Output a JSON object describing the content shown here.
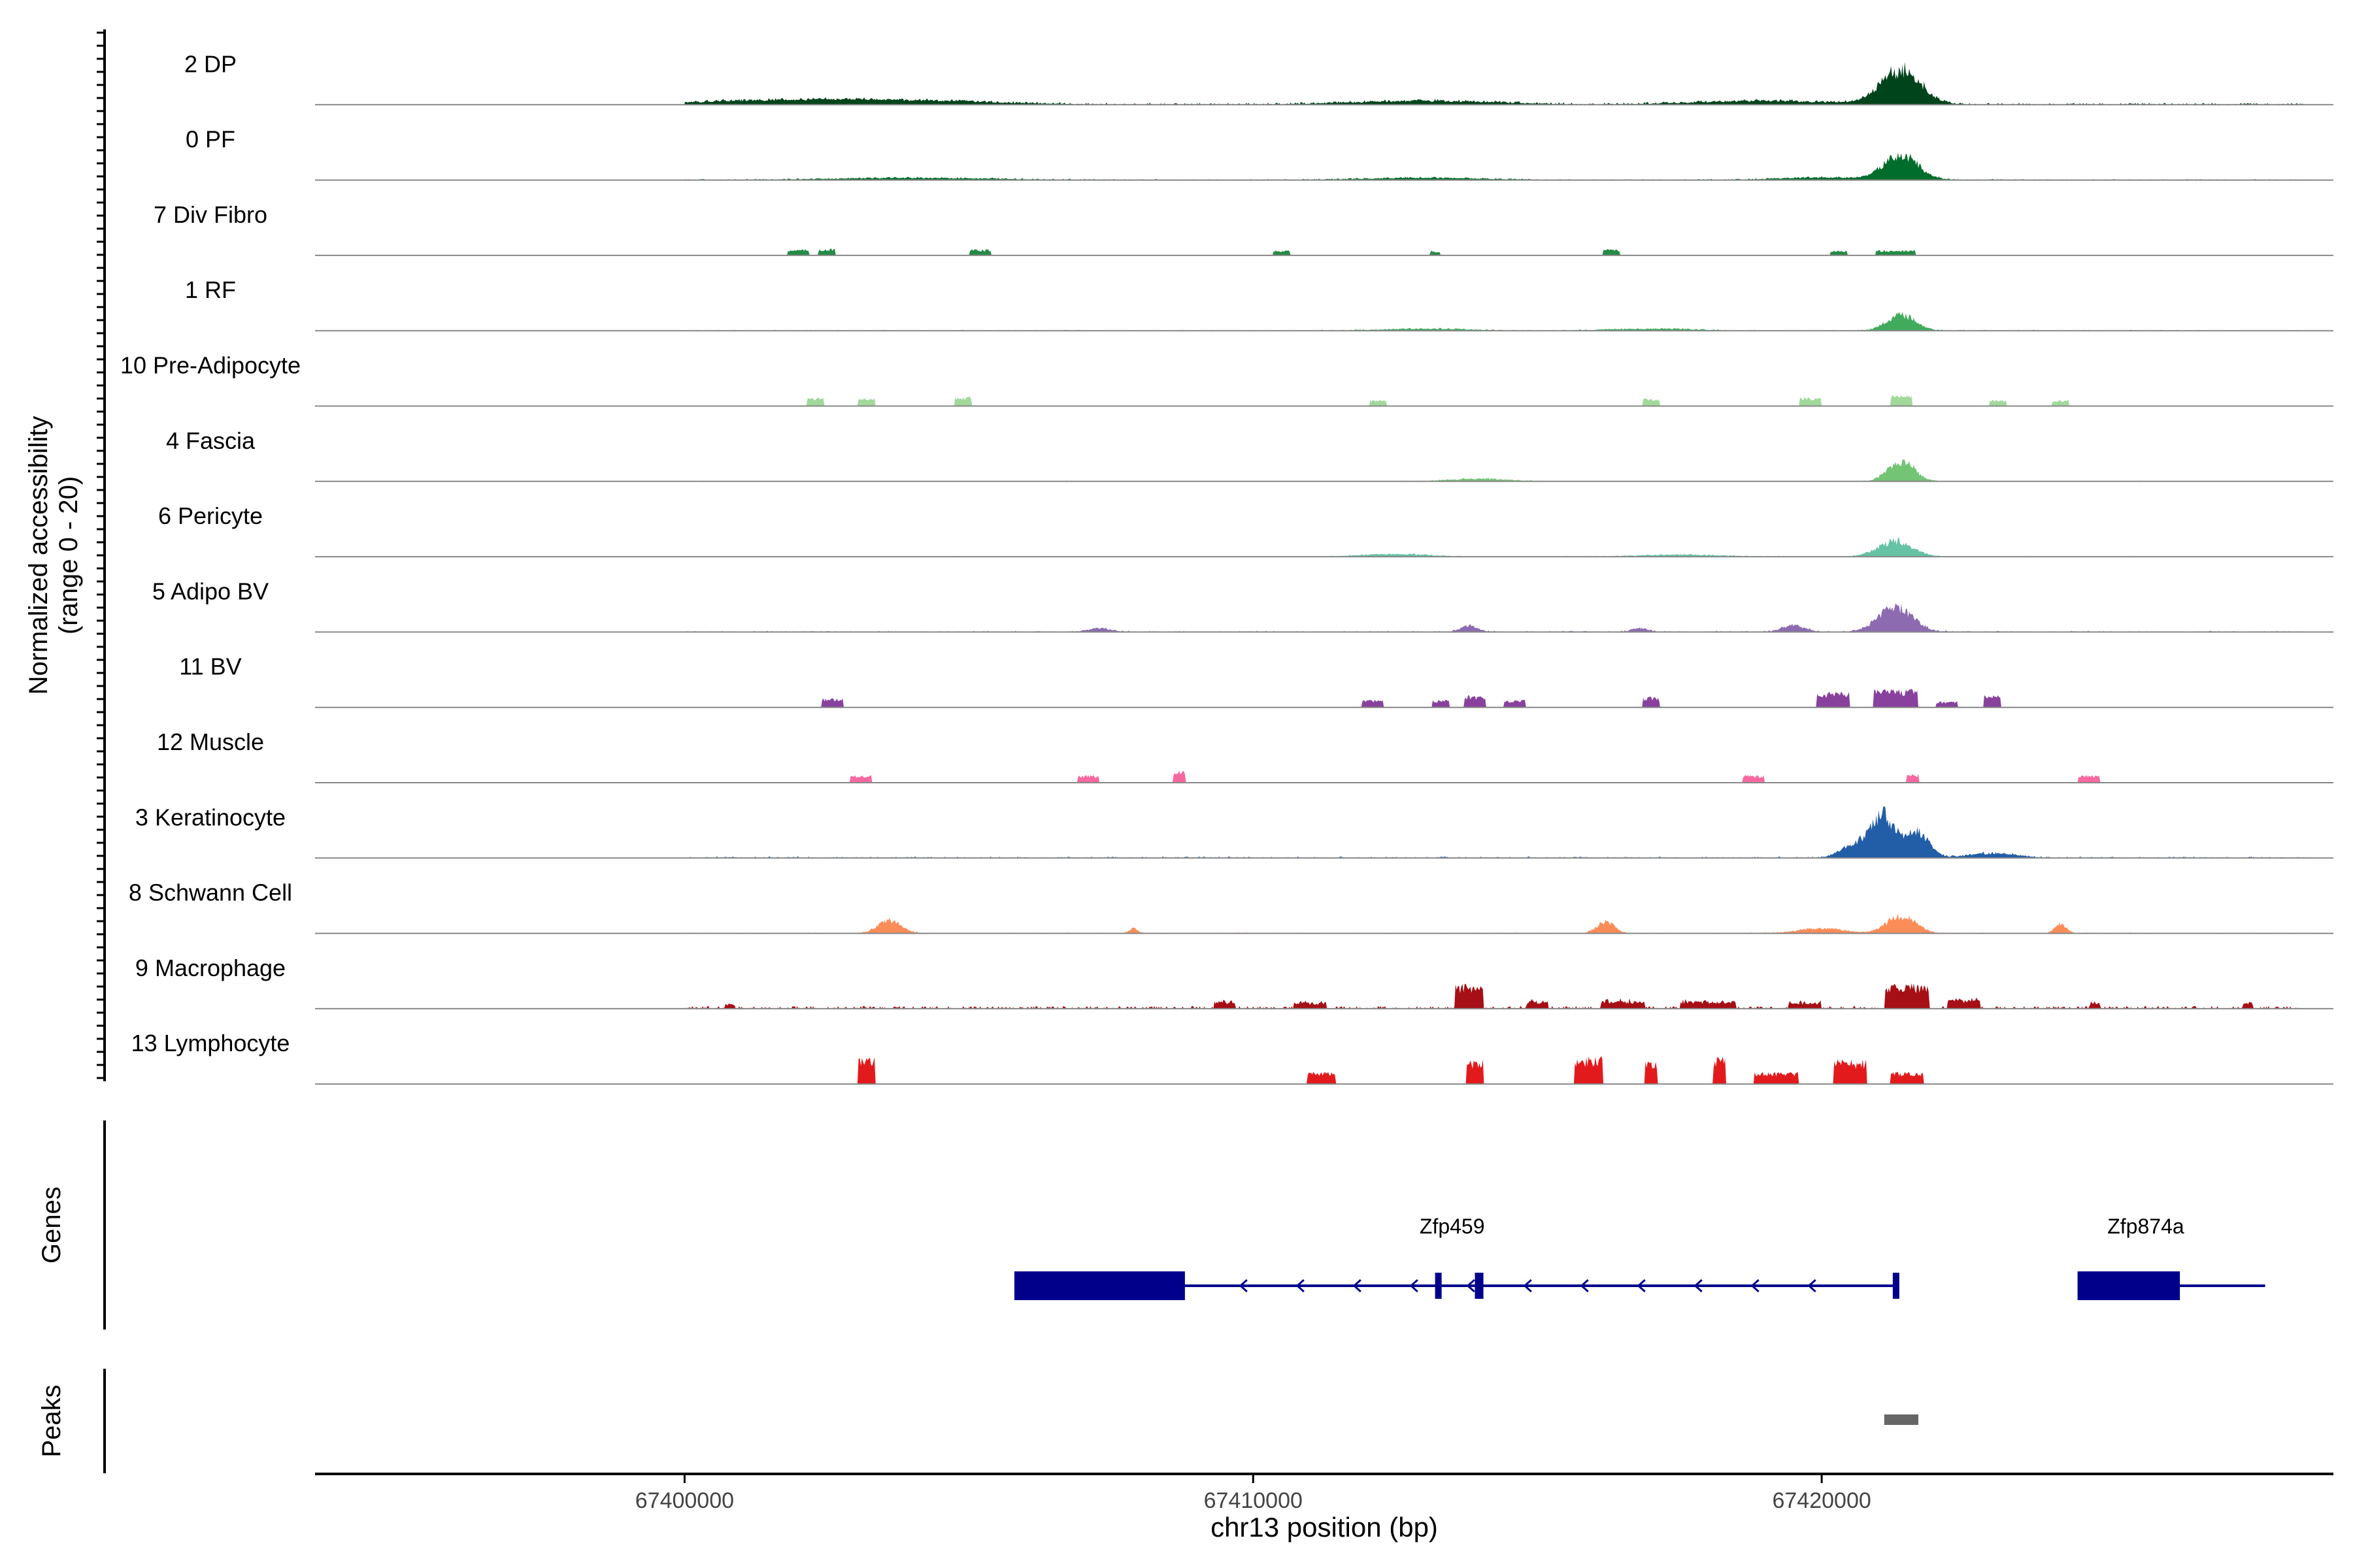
{
  "chart_data": {
    "type": "area",
    "title": "",
    "ylabel_line1": "Normalized accessibility",
    "ylabel_line2": "(range 0 - 20)",
    "xlabel": "chr13 position (bp)",
    "xlim": [
      67393500,
      67429000
    ],
    "ylim": [
      0,
      20
    ],
    "x_ticks": [
      67400000,
      67410000,
      67420000
    ],
    "x_tick_labels": [
      "67400000",
      "67410000",
      "67420000"
    ],
    "genes_label": "Genes",
    "peaks_label": "Peaks",
    "series": [
      {
        "name": "2 DP",
        "color": "#00441b",
        "peaks": [
          [
            67421400,
            11,
            700
          ],
          [
            67413000,
            1.2,
            2500
          ],
          [
            67404000,
            1.2,
            3000
          ],
          [
            67419000,
            1.2,
            2500
          ],
          [
            67401500,
            1.2,
            3000
          ]
        ],
        "noise": 0.6
      },
      {
        "name": "0 PF",
        "color": "#006d2c",
        "peaks": [
          [
            67421400,
            8,
            600
          ],
          [
            67420000,
            0.8,
            1500
          ],
          [
            67413000,
            0.7,
            2000
          ],
          [
            67404000,
            0.6,
            3000
          ]
        ],
        "noise": 0.35
      },
      {
        "name": "7 Div Fibro",
        "color": "#238b45",
        "peaks": [
          [
            67402000,
            2,
            200
          ],
          [
            67402500,
            2.2,
            150
          ],
          [
            67405200,
            2,
            200
          ],
          [
            67410500,
            1.8,
            150
          ],
          [
            67413200,
            1.5,
            100
          ],
          [
            67416300,
            2.2,
            150
          ],
          [
            67420300,
            1.5,
            150
          ],
          [
            67421300,
            1.8,
            350
          ]
        ],
        "noise": 0,
        "discrete": true
      },
      {
        "name": "1 RF",
        "color": "#41ab5d",
        "peaks": [
          [
            67421400,
            5,
            500
          ],
          [
            67413000,
            0.6,
            1500
          ],
          [
            67417000,
            0.6,
            1500
          ]
        ],
        "noise": 0.3
      },
      {
        "name": "10 Pre-Adipocyte",
        "color": "#a1d99b",
        "peaks": [
          [
            67402300,
            3,
            150
          ],
          [
            67403200,
            3,
            150
          ],
          [
            67404900,
            3,
            150
          ],
          [
            67412200,
            2,
            150
          ],
          [
            67417000,
            2.5,
            150
          ],
          [
            67419800,
            3,
            200
          ],
          [
            67421400,
            4,
            200
          ],
          [
            67423100,
            2,
            150
          ],
          [
            67424200,
            2,
            150
          ]
        ],
        "noise": 0,
        "discrete": true
      },
      {
        "name": "4 Fascia",
        "color": "#74c476",
        "peaks": [
          [
            67421400,
            6.5,
            450
          ],
          [
            67414000,
            0.8,
            1000
          ]
        ],
        "noise": 0.25
      },
      {
        "name": "6 Pericyte",
        "color": "#66c2a4",
        "peaks": [
          [
            67421300,
            5,
            600
          ],
          [
            67412500,
            0.8,
            1200
          ],
          [
            67417500,
            0.6,
            1500
          ]
        ],
        "noise": 0.25
      },
      {
        "name": "5 Adipo BV",
        "color": "#8c6bb1",
        "peaks": [
          [
            67421300,
            8,
            600
          ],
          [
            67413800,
            2,
            300
          ],
          [
            67419500,
            2,
            400
          ],
          [
            67407300,
            1.2,
            400
          ],
          [
            67416800,
            1.2,
            300
          ]
        ],
        "noise": 0.4
      },
      {
        "name": "11 BV",
        "color": "#88419d",
        "peaks": [
          [
            67402600,
            3,
            200
          ],
          [
            67412100,
            2.5,
            200
          ],
          [
            67413300,
            2.5,
            150
          ],
          [
            67413900,
            4,
            200
          ],
          [
            67414600,
            2.5,
            200
          ],
          [
            67417000,
            3.5,
            150
          ],
          [
            67420200,
            5,
            300
          ],
          [
            67421300,
            6,
            400
          ],
          [
            67422200,
            2,
            200
          ],
          [
            67423000,
            4,
            150
          ]
        ],
        "noise": 0,
        "discrete": true
      },
      {
        "name": "12 Muscle",
        "color": "#f768a1",
        "peaks": [
          [
            67403100,
            2.5,
            200
          ],
          [
            67407100,
            2.5,
            200
          ],
          [
            67408700,
            4,
            120
          ],
          [
            67418800,
            2.5,
            200
          ],
          [
            67421600,
            3,
            120
          ],
          [
            67424700,
            2.5,
            200
          ]
        ],
        "noise": 0,
        "discrete": true
      },
      {
        "name": "3 Keratinocyte",
        "color": "#225ea8",
        "peaks": [
          [
            67421100,
            13,
            450
          ],
          [
            67421700,
            8,
            400
          ],
          [
            67420600,
            4,
            500
          ],
          [
            67423000,
            1.5,
            800
          ]
        ],
        "noise": 0.5
      },
      {
        "name": "8 Schwann Cell",
        "color": "#fc8d59",
        "peaks": [
          [
            67403600,
            4,
            400
          ],
          [
            67416200,
            4,
            300
          ],
          [
            67421400,
            5.5,
            500
          ],
          [
            67424200,
            3,
            200
          ],
          [
            67420000,
            1.5,
            800
          ],
          [
            67407900,
            1.5,
            150
          ]
        ],
        "noise": 0.3
      },
      {
        "name": "9 Macrophage",
        "color": "#a50f15",
        "peaks": [
          [
            67413800,
            8,
            250
          ],
          [
            67421500,
            8,
            400
          ],
          [
            67415000,
            2.5,
            200
          ],
          [
            67416500,
            2.5,
            400
          ],
          [
            67418000,
            2.5,
            500
          ],
          [
            67419700,
            2,
            300
          ],
          [
            67422500,
            3,
            300
          ],
          [
            67409500,
            2.5,
            200
          ],
          [
            67411000,
            2,
            300
          ],
          [
            67400800,
            1.5,
            100
          ],
          [
            67424800,
            2,
            100
          ],
          [
            67427500,
            2,
            100
          ]
        ],
        "noise": 0.9,
        "discrete": true
      },
      {
        "name": "13 Lymphocyte",
        "color": "#e31a1c",
        "peaks": [
          [
            67403200,
            9,
            150
          ],
          [
            67411200,
            4,
            250
          ],
          [
            67413900,
            8,
            150
          ],
          [
            67415900,
            9,
            250
          ],
          [
            67417000,
            8,
            120
          ],
          [
            67418200,
            9,
            120
          ],
          [
            67419200,
            4,
            400
          ],
          [
            67420500,
            8,
            300
          ],
          [
            67421500,
            4,
            300
          ]
        ],
        "noise": 0,
        "discrete": true
      }
    ],
    "genes": [
      {
        "name": "Zfp459",
        "start": 67405800,
        "end": 67421300,
        "strand": "-",
        "exons": [
          [
            67405800,
            67408800
          ],
          [
            67413200,
            67413300
          ],
          [
            67413900,
            67414050
          ],
          [
            67421250,
            67421320
          ]
        ],
        "label_pos": 67413500
      },
      {
        "name": "Zfp874a",
        "start": 67424500,
        "end": 67427800,
        "strand": "-",
        "exons": [
          [
            67424500,
            67426300
          ]
        ],
        "label_pos": 67425700
      }
    ],
    "peak_regions": [
      [
        67421100,
        67421700
      ]
    ]
  }
}
